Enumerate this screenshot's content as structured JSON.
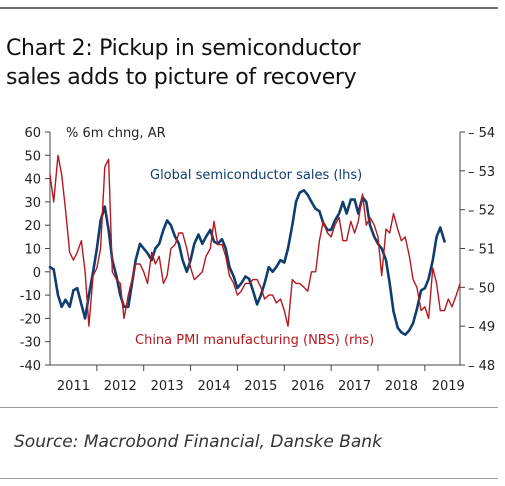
{
  "title_lines": [
    "Chart 2: Pickup in semiconductor",
    "sales adds to picture of recovery"
  ],
  "source": "Source: Macrobond Financial, Danske Bank",
  "colors": {
    "semi": "#0f3d6e",
    "pmi": "#b5181f",
    "axis": "#444444",
    "rule": "#6e6e6e"
  },
  "chart_data": {
    "type": "line",
    "title": "Chart 2: Pickup in semiconductor sales adds to picture of recovery",
    "ylabel_left": "% 6m chng, AR",
    "y_left": {
      "lim": [
        -40,
        60
      ],
      "ticks": [
        "60",
        "50",
        "40",
        "30",
        "20",
        "10",
        "0",
        "-10",
        "-20",
        "-30",
        "-40"
      ]
    },
    "y_right": {
      "lim": [
        48,
        54
      ],
      "ticks": [
        "54",
        "53",
        "52",
        "51",
        "50",
        "49",
        "48"
      ]
    },
    "x_ticks": [
      "2011",
      "2012",
      "2013",
      "2014",
      "2015",
      "2016",
      "2017",
      "2018",
      "2019"
    ],
    "x_range": [
      2011.0,
      2019.75
    ],
    "grid": false,
    "series": [
      {
        "name": "Global semiconductor sales (lhs)",
        "axis": "left",
        "points": [
          [
            2011.0,
            2
          ],
          [
            2011.08,
            1
          ],
          [
            2011.17,
            -10
          ],
          [
            2011.25,
            -15
          ],
          [
            2011.33,
            -12
          ],
          [
            2011.42,
            -15
          ],
          [
            2011.5,
            -8
          ],
          [
            2011.58,
            -7
          ],
          [
            2011.67,
            -14
          ],
          [
            2011.75,
            -20
          ],
          [
            2011.83,
            -10
          ],
          [
            2011.92,
            0
          ],
          [
            2012.0,
            10
          ],
          [
            2012.08,
            22
          ],
          [
            2012.17,
            28
          ],
          [
            2012.25,
            18
          ],
          [
            2012.33,
            5
          ],
          [
            2012.42,
            -2
          ],
          [
            2012.5,
            -10
          ],
          [
            2012.58,
            -15
          ],
          [
            2012.67,
            -15
          ],
          [
            2012.75,
            -5
          ],
          [
            2012.83,
            5
          ],
          [
            2012.92,
            12
          ],
          [
            2013.0,
            10
          ],
          [
            2013.08,
            8
          ],
          [
            2013.17,
            5
          ],
          [
            2013.25,
            10
          ],
          [
            2013.33,
            12
          ],
          [
            2013.42,
            18
          ],
          [
            2013.5,
            22
          ],
          [
            2013.58,
            20
          ],
          [
            2013.67,
            15
          ],
          [
            2013.75,
            12
          ],
          [
            2013.83,
            5
          ],
          [
            2013.92,
            0
          ],
          [
            2014.0,
            5
          ],
          [
            2014.08,
            12
          ],
          [
            2014.17,
            16
          ],
          [
            2014.25,
            12
          ],
          [
            2014.33,
            15
          ],
          [
            2014.42,
            18
          ],
          [
            2014.5,
            13
          ],
          [
            2014.58,
            12
          ],
          [
            2014.67,
            14
          ],
          [
            2014.75,
            10
          ],
          [
            2014.83,
            2
          ],
          [
            2014.92,
            -2
          ],
          [
            2015.0,
            -7
          ],
          [
            2015.08,
            -5
          ],
          [
            2015.17,
            -2
          ],
          [
            2015.25,
            -3
          ],
          [
            2015.33,
            -8
          ],
          [
            2015.42,
            -14
          ],
          [
            2015.5,
            -10
          ],
          [
            2015.58,
            -5
          ],
          [
            2015.67,
            2
          ],
          [
            2015.75,
            0
          ],
          [
            2015.83,
            2
          ],
          [
            2015.92,
            5
          ],
          [
            2016.0,
            4
          ],
          [
            2016.08,
            10
          ],
          [
            2016.17,
            20
          ],
          [
            2016.25,
            30
          ],
          [
            2016.33,
            34
          ],
          [
            2016.42,
            35
          ],
          [
            2016.5,
            33
          ],
          [
            2016.58,
            30
          ],
          [
            2016.67,
            27
          ],
          [
            2016.75,
            26
          ],
          [
            2016.83,
            21
          ],
          [
            2016.92,
            18
          ],
          [
            2017.0,
            18
          ],
          [
            2017.08,
            22
          ],
          [
            2017.17,
            25
          ],
          [
            2017.25,
            30
          ],
          [
            2017.33,
            25
          ],
          [
            2017.42,
            31
          ],
          [
            2017.5,
            31
          ],
          [
            2017.58,
            25
          ],
          [
            2017.67,
            32
          ],
          [
            2017.75,
            30
          ],
          [
            2017.83,
            20
          ],
          [
            2017.92,
            15
          ],
          [
            2018.0,
            12
          ],
          [
            2018.08,
            10
          ],
          [
            2018.17,
            5
          ],
          [
            2018.25,
            -5
          ],
          [
            2018.33,
            -17
          ],
          [
            2018.42,
            -24
          ],
          [
            2018.5,
            -26
          ],
          [
            2018.58,
            -27
          ],
          [
            2018.67,
            -25
          ],
          [
            2018.75,
            -22
          ],
          [
            2018.83,
            -16
          ],
          [
            2018.92,
            -8
          ],
          [
            2019.0,
            -7
          ],
          [
            2019.08,
            -3
          ],
          [
            2019.17,
            5
          ],
          [
            2019.25,
            15
          ],
          [
            2019.33,
            19
          ],
          [
            2019.42,
            13
          ]
        ]
      },
      {
        "name": "China PMI manufacturing (NBS) (rhs)",
        "axis": "right",
        "points": [
          [
            2011.0,
            52.9
          ],
          [
            2011.08,
            52.2
          ],
          [
            2011.17,
            53.4
          ],
          [
            2011.25,
            52.9
          ],
          [
            2011.33,
            52.0
          ],
          [
            2011.42,
            50.9
          ],
          [
            2011.5,
            50.7
          ],
          [
            2011.58,
            50.9
          ],
          [
            2011.67,
            51.2
          ],
          [
            2011.75,
            50.4
          ],
          [
            2011.83,
            49.0
          ],
          [
            2011.92,
            50.3
          ],
          [
            2012.0,
            50.5
          ],
          [
            2012.08,
            51.0
          ],
          [
            2012.17,
            53.1
          ],
          [
            2012.25,
            53.3
          ],
          [
            2012.33,
            50.4
          ],
          [
            2012.42,
            50.2
          ],
          [
            2012.5,
            50.1
          ],
          [
            2012.58,
            49.2
          ],
          [
            2012.67,
            49.8
          ],
          [
            2012.75,
            50.2
          ],
          [
            2012.83,
            50.6
          ],
          [
            2012.92,
            50.6
          ],
          [
            2013.0,
            50.4
          ],
          [
            2013.08,
            50.1
          ],
          [
            2013.17,
            50.9
          ],
          [
            2013.25,
            50.6
          ],
          [
            2013.33,
            50.8
          ],
          [
            2013.42,
            50.1
          ],
          [
            2013.5,
            50.3
          ],
          [
            2013.58,
            51.0
          ],
          [
            2013.67,
            51.1
          ],
          [
            2013.75,
            51.4
          ],
          [
            2013.83,
            51.4
          ],
          [
            2013.92,
            51.0
          ],
          [
            2014.0,
            50.5
          ],
          [
            2014.08,
            50.2
          ],
          [
            2014.17,
            50.3
          ],
          [
            2014.25,
            50.4
          ],
          [
            2014.33,
            50.8
          ],
          [
            2014.42,
            51.0
          ],
          [
            2014.5,
            51.7
          ],
          [
            2014.58,
            51.1
          ],
          [
            2014.67,
            51.1
          ],
          [
            2014.75,
            50.8
          ],
          [
            2014.83,
            50.3
          ],
          [
            2014.92,
            50.1
          ],
          [
            2015.0,
            49.8
          ],
          [
            2015.08,
            49.9
          ],
          [
            2015.17,
            50.1
          ],
          [
            2015.25,
            50.1
          ],
          [
            2015.33,
            50.2
          ],
          [
            2015.42,
            50.2
          ],
          [
            2015.5,
            50.0
          ],
          [
            2015.58,
            49.7
          ],
          [
            2015.67,
            49.8
          ],
          [
            2015.75,
            49.8
          ],
          [
            2015.83,
            49.6
          ],
          [
            2015.92,
            49.7
          ],
          [
            2016.0,
            49.4
          ],
          [
            2016.08,
            49.0
          ],
          [
            2016.17,
            50.2
          ],
          [
            2016.25,
            50.1
          ],
          [
            2016.33,
            50.1
          ],
          [
            2016.42,
            50.0
          ],
          [
            2016.5,
            49.9
          ],
          [
            2016.58,
            50.4
          ],
          [
            2016.67,
            50.4
          ],
          [
            2016.75,
            51.2
          ],
          [
            2016.83,
            51.7
          ],
          [
            2016.92,
            51.4
          ],
          [
            2017.0,
            51.3
          ],
          [
            2017.08,
            51.6
          ],
          [
            2017.17,
            51.8
          ],
          [
            2017.25,
            51.2
          ],
          [
            2017.33,
            51.2
          ],
          [
            2017.42,
            51.7
          ],
          [
            2017.5,
            51.4
          ],
          [
            2017.58,
            51.7
          ],
          [
            2017.67,
            52.4
          ],
          [
            2017.75,
            51.6
          ],
          [
            2017.83,
            51.8
          ],
          [
            2017.92,
            51.6
          ],
          [
            2018.0,
            51.3
          ],
          [
            2018.08,
            50.3
          ],
          [
            2018.17,
            51.5
          ],
          [
            2018.25,
            51.4
          ],
          [
            2018.33,
            51.9
          ],
          [
            2018.42,
            51.5
          ],
          [
            2018.5,
            51.2
          ],
          [
            2018.58,
            51.3
          ],
          [
            2018.67,
            50.8
          ],
          [
            2018.75,
            50.2
          ],
          [
            2018.83,
            50.0
          ],
          [
            2018.92,
            49.4
          ],
          [
            2019.0,
            49.5
          ],
          [
            2019.08,
            49.2
          ],
          [
            2019.17,
            50.5
          ],
          [
            2019.25,
            50.1
          ],
          [
            2019.33,
            49.4
          ],
          [
            2019.42,
            49.4
          ],
          [
            2019.5,
            49.7
          ],
          [
            2019.58,
            49.5
          ],
          [
            2019.67,
            49.8
          ],
          [
            2019.75,
            50.1
          ]
        ]
      }
    ],
    "annotations": [
      {
        "text": "Global semiconductor sales (lhs)",
        "series": 0
      },
      {
        "text": "China PMI manufacturing (NBS) (rhs)",
        "series": 1
      }
    ]
  }
}
